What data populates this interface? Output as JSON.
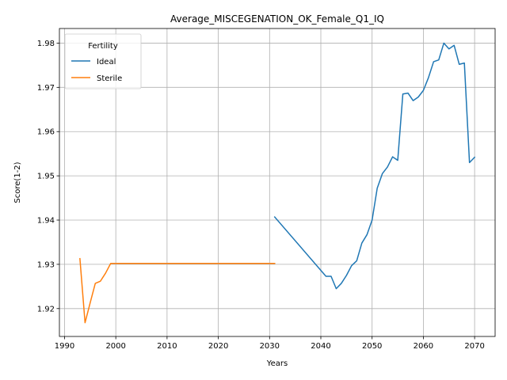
{
  "chart_data": {
    "type": "line",
    "title": "Average_MISCEGENATION_OK_Female_Q1_IQ",
    "xlabel": "Years",
    "ylabel": "Score(1-2)",
    "xlim": [
      1989,
      2074
    ],
    "ylim": [
      1.9137,
      1.9833
    ],
    "xticks": [
      1990,
      2000,
      2010,
      2020,
      2030,
      2040,
      2050,
      2060,
      2070
    ],
    "yticks": [
      1.92,
      1.93,
      1.94,
      1.95,
      1.96,
      1.97,
      1.98
    ],
    "ytick_labels": [
      "1.92",
      "1.93",
      "1.94",
      "1.95",
      "1.96",
      "1.97",
      "1.98"
    ],
    "grid": true,
    "legend": {
      "title": "Fertility",
      "placement": "top-left"
    },
    "series": [
      {
        "name": "Ideal",
        "color": "#1f77b4",
        "points": [
          [
            2031,
            1.9407
          ],
          [
            2041,
            1.9273
          ],
          [
            2042,
            1.9273
          ],
          [
            2043,
            1.9245
          ],
          [
            2044,
            1.9257
          ],
          [
            2045,
            1.9275
          ],
          [
            2046,
            1.9297
          ],
          [
            2047,
            1.9308
          ],
          [
            2048,
            1.9348
          ],
          [
            2049,
            1.9367
          ],
          [
            2050,
            1.94
          ],
          [
            2051,
            1.9472
          ],
          [
            2052,
            1.9505
          ],
          [
            2053,
            1.952
          ],
          [
            2054,
            1.9543
          ],
          [
            2055,
            1.9535
          ],
          [
            2056,
            1.9685
          ],
          [
            2057,
            1.9687
          ],
          [
            2058,
            1.967
          ],
          [
            2059,
            1.9678
          ],
          [
            2060,
            1.9693
          ],
          [
            2061,
            1.9722
          ],
          [
            2062,
            1.9758
          ],
          [
            2063,
            1.9762
          ],
          [
            2064,
            1.98
          ],
          [
            2065,
            1.9787
          ],
          [
            2066,
            1.9795
          ],
          [
            2067,
            1.9752
          ],
          [
            2068,
            1.9755
          ],
          [
            2069,
            1.953
          ],
          [
            2070,
            1.9542
          ]
        ]
      },
      {
        "name": "Sterile",
        "color": "#ff7f0e",
        "points": [
          [
            1993,
            1.9313
          ],
          [
            1994,
            1.9168
          ],
          [
            1995,
            1.9213
          ],
          [
            1996,
            1.9257
          ],
          [
            1997,
            1.9262
          ],
          [
            1998,
            1.928
          ],
          [
            1999,
            1.9302
          ],
          [
            2000,
            1.9302
          ],
          [
            2031,
            1.9302
          ]
        ]
      }
    ]
  }
}
